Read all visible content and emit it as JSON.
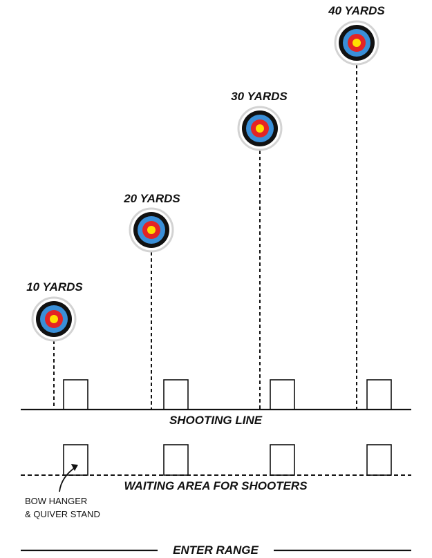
{
  "targets": [
    {
      "distance_label": "10 YARDS"
    },
    {
      "distance_label": "20 YARDS"
    },
    {
      "distance_label": "30 YARDS"
    },
    {
      "distance_label": "40 YARDS"
    }
  ],
  "shooting_line": {
    "label": "SHOOTING LINE"
  },
  "waiting_area": {
    "label": "WAITING AREA FOR SHOOTERS"
  },
  "bow_hanger": {
    "line1": "BOW HANGER",
    "line2": "& QUIVER STAND"
  },
  "entrance": {
    "label": "ENTER RANGE"
  },
  "target_colors": {
    "outer_ring": "#d3d3d3",
    "black": "#111111",
    "blue": "#3a8fd8",
    "red": "#e42424",
    "gold": "#ffe000"
  }
}
